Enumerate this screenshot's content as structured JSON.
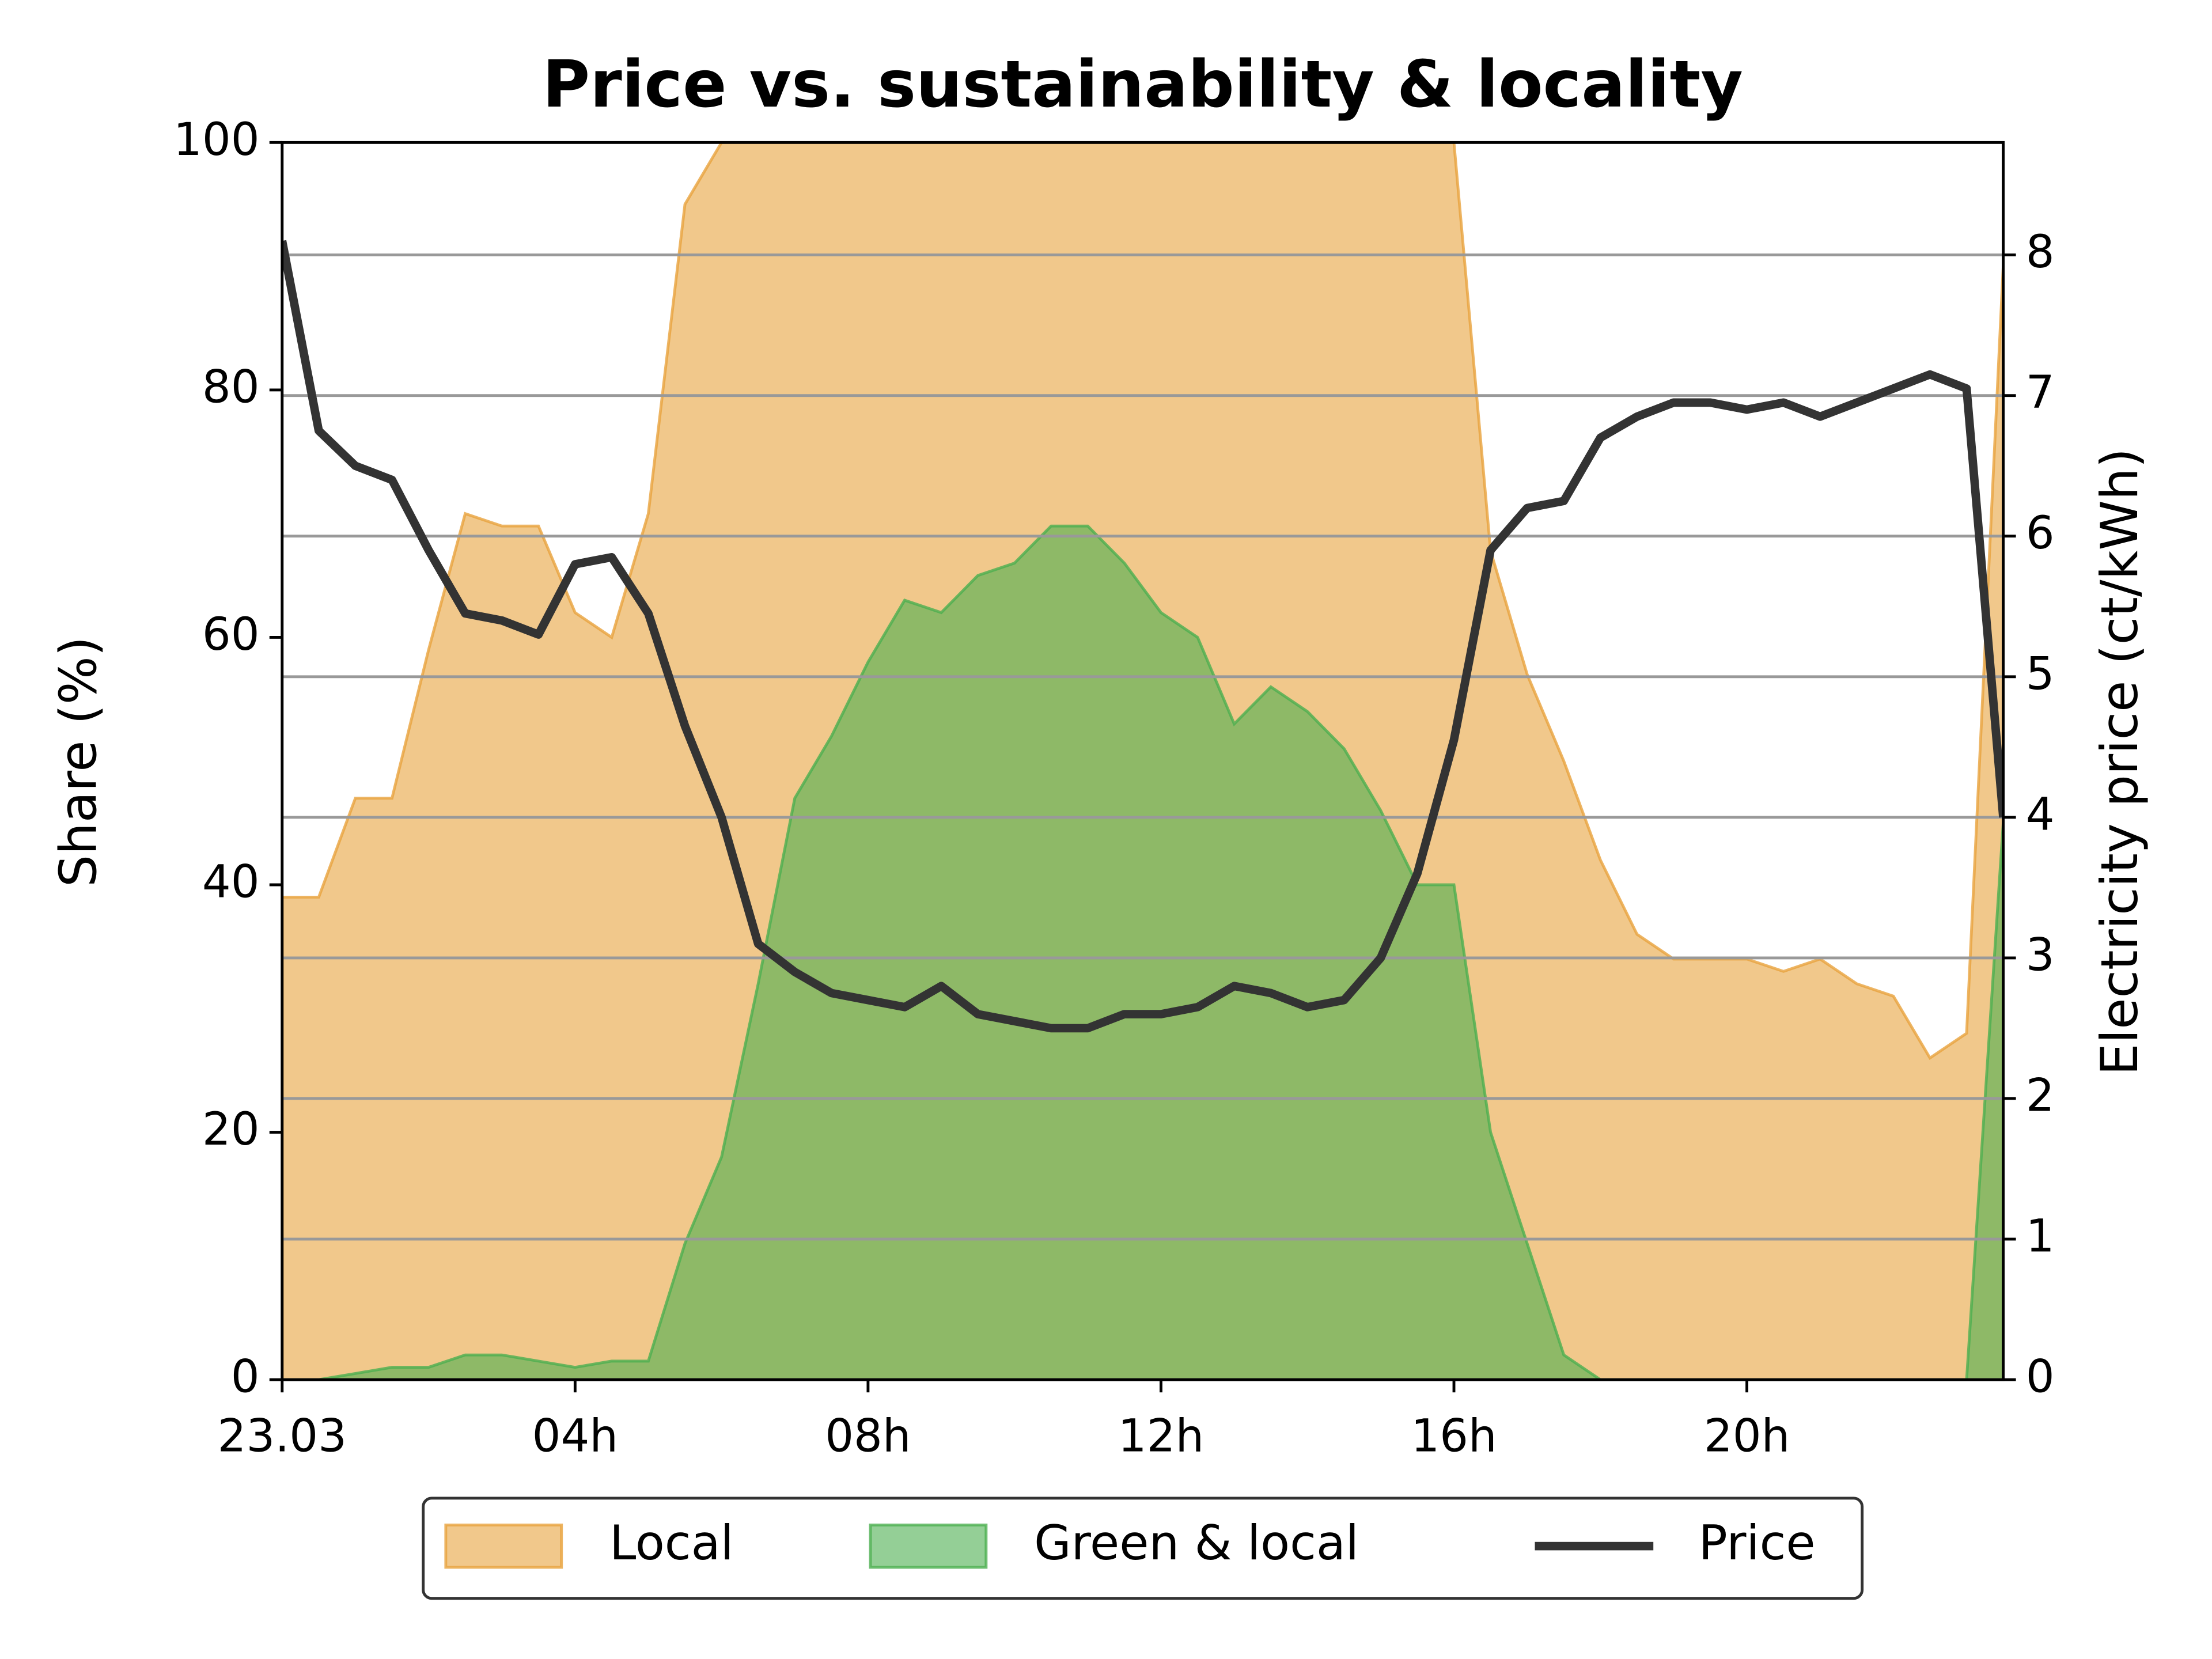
{
  "chart_data": {
    "type": "area",
    "title": "Price vs. sustainability & locality",
    "ylabel": "Share (%)",
    "y2label": "Electricity price (ct/kWh)",
    "x": [
      0,
      0.5,
      1,
      1.5,
      2,
      2.5,
      3,
      3.5,
      4,
      4.5,
      5,
      5.5,
      6,
      6.5,
      7,
      7.5,
      8,
      8.5,
      9,
      9.5,
      10,
      10.5,
      11,
      11.5,
      12,
      12.5,
      13,
      13.5,
      14,
      14.5,
      15,
      15.5,
      16,
      16.5,
      17,
      17.5,
      18,
      18.5,
      19,
      19.5,
      20,
      20.5,
      21,
      21.5,
      22,
      22.5,
      23,
      23.5
    ],
    "xlim": [
      0,
      23.5
    ],
    "xticks": [
      {
        "value": 0,
        "label": "23.03"
      },
      {
        "value": 4,
        "label": "04h"
      },
      {
        "value": 8,
        "label": "08h"
      },
      {
        "value": 12,
        "label": "12h"
      },
      {
        "value": 16,
        "label": "16h"
      },
      {
        "value": 20,
        "label": "20h"
      }
    ],
    "ylim": [
      0,
      100
    ],
    "yticks": [
      0,
      20,
      40,
      60,
      80,
      100
    ],
    "y2lim": [
      0,
      8.8
    ],
    "y2ticks": [
      0,
      1,
      2,
      3,
      4,
      5,
      6,
      7,
      8
    ],
    "grid": "y2",
    "legend": "lower center",
    "series": [
      {
        "name": "Local",
        "type": "area",
        "color": "#e8a33d",
        "values": [
          39,
          39,
          47,
          47,
          59,
          70,
          69,
          69,
          62,
          60,
          70,
          95,
          100,
          100,
          100,
          100,
          100,
          100,
          100,
          100,
          100,
          100,
          100,
          100,
          100,
          100,
          100,
          100,
          100,
          100,
          100,
          100,
          100,
          67,
          57,
          50,
          42,
          36,
          34,
          34,
          34,
          33,
          34,
          32,
          31,
          26,
          28,
          90
        ]
      },
      {
        "name": "Green & local",
        "type": "area",
        "color": "#4caf50",
        "values": [
          0,
          0,
          0.5,
          1,
          1,
          2,
          2,
          1.5,
          1,
          1.5,
          1.5,
          11,
          18,
          32,
          47,
          52,
          58,
          63,
          62,
          65,
          66,
          69,
          69,
          66,
          62,
          60,
          53,
          56,
          54,
          51,
          46,
          40,
          40,
          20,
          11,
          2,
          0,
          0,
          0,
          0,
          0,
          0,
          0,
          0,
          0,
          0,
          0,
          45
        ]
      },
      {
        "name": "Price",
        "type": "line",
        "axis": "y2",
        "color": "#333333",
        "values": [
          8.1,
          6.75,
          6.5,
          6.4,
          5.9,
          5.45,
          5.4,
          5.3,
          5.8,
          5.85,
          5.45,
          4.65,
          4.0,
          3.1,
          2.9,
          2.75,
          2.7,
          2.65,
          2.8,
          2.6,
          2.55,
          2.5,
          2.5,
          2.6,
          2.6,
          2.65,
          2.8,
          2.75,
          2.65,
          2.7,
          3.0,
          3.6,
          4.55,
          5.9,
          6.2,
          6.25,
          6.7,
          6.85,
          6.95,
          6.95,
          6.9,
          6.95,
          6.85,
          6.95,
          7.05,
          7.15,
          7.05,
          4.0
        ]
      }
    ]
  }
}
